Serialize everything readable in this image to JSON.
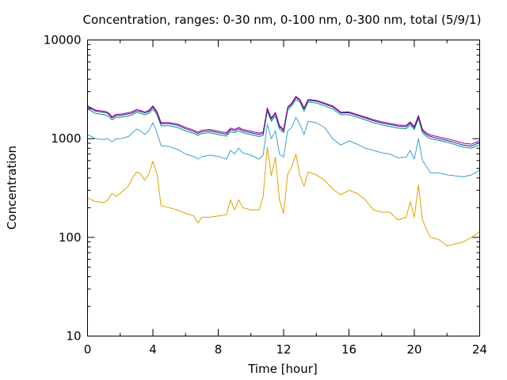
{
  "chart_data": {
    "type": "line",
    "title": "Concentration, ranges: 0-30 nm, 0-100 nm, 0-300 nm, total (5/9/1)",
    "xlabel": "Time [hour]",
    "ylabel": "Concentration",
    "xlim": [
      0,
      24
    ],
    "ylim": [
      10,
      10000
    ],
    "yscale": "log",
    "x_ticks": [
      "0",
      "4",
      "8",
      "12",
      "16",
      "20",
      "24"
    ],
    "y_ticks": [
      "10",
      "100",
      "1000",
      "10000"
    ],
    "grid": false,
    "legend": "none",
    "series": [
      {
        "color": "#e0a000",
        "x": [
          0,
          0.5,
          1,
          1.25,
          1.5,
          1.75,
          2,
          2.5,
          2.75,
          3,
          3.25,
          3.5,
          3.75,
          4,
          4.25,
          4.5,
          5,
          5.5,
          6,
          6.5,
          6.75,
          7,
          7.5,
          8,
          8.5,
          8.75,
          9,
          9.25,
          9.5,
          10,
          10.5,
          10.75,
          11,
          11.25,
          11.5,
          11.75,
          12,
          12.25,
          12.5,
          12.75,
          13,
          13.25,
          13.5,
          14,
          14.5,
          15,
          15.5,
          16,
          16.5,
          17,
          17.5,
          18,
          18.5,
          19,
          19.5,
          19.75,
          20,
          20.25,
          20.5,
          20.75,
          21,
          21.5,
          22,
          22.5,
          23,
          23.5,
          24
        ],
        "y": [
          250,
          230,
          225,
          240,
          280,
          260,
          280,
          330,
          400,
          460,
          440,
          380,
          440,
          590,
          440,
          210,
          200,
          190,
          175,
          165,
          140,
          160,
          160,
          165,
          170,
          240,
          190,
          240,
          200,
          190,
          190,
          260,
          820,
          420,
          650,
          240,
          175,
          440,
          520,
          700,
          420,
          330,
          460,
          430,
          380,
          310,
          270,
          300,
          280,
          240,
          190,
          180,
          180,
          150,
          160,
          230,
          160,
          340,
          150,
          120,
          100,
          95,
          82,
          86,
          90,
          100,
          115
        ]
      },
      {
        "color": "#3aa0d0",
        "x": [
          0,
          0.5,
          1,
          1.25,
          1.5,
          1.75,
          2,
          2.5,
          2.75,
          3,
          3.25,
          3.5,
          3.75,
          4,
          4.25,
          4.5,
          5,
          5.5,
          6,
          6.5,
          6.75,
          7,
          7.5,
          8,
          8.5,
          8.75,
          9,
          9.25,
          9.5,
          10,
          10.5,
          10.75,
          11,
          11.25,
          11.5,
          11.75,
          12,
          12.25,
          12.5,
          12.75,
          13,
          13.25,
          13.5,
          14,
          14.5,
          15,
          15.5,
          16,
          16.5,
          17,
          17.5,
          18,
          18.5,
          19,
          19.5,
          19.75,
          20,
          20.25,
          20.5,
          20.75,
          21,
          21.5,
          22,
          22.5,
          23,
          23.5,
          24
        ],
        "y": [
          1100,
          1000,
          980,
          1000,
          930,
          1000,
          1000,
          1050,
          1150,
          1250,
          1200,
          1100,
          1200,
          1450,
          1150,
          850,
          830,
          780,
          700,
          660,
          620,
          660,
          680,
          660,
          620,
          760,
          700,
          800,
          720,
          680,
          620,
          680,
          1400,
          1000,
          1200,
          700,
          650,
          1200,
          1300,
          1650,
          1400,
          1100,
          1500,
          1450,
          1300,
          1000,
          860,
          950,
          880,
          800,
          760,
          720,
          700,
          640,
          650,
          760,
          620,
          1000,
          600,
          520,
          450,
          450,
          430,
          420,
          410,
          430,
          480
        ]
      },
      {
        "color": "#00946b",
        "x": [
          0,
          0.5,
          1,
          1.25,
          1.5,
          1.75,
          2,
          2.5,
          2.75,
          3,
          3.25,
          3.5,
          3.75,
          4,
          4.25,
          4.5,
          5,
          5.5,
          6,
          6.5,
          6.75,
          7,
          7.5,
          8,
          8.5,
          8.75,
          9,
          9.25,
          9.5,
          10,
          10.5,
          10.75,
          11,
          11.25,
          11.5,
          11.75,
          12,
          12.25,
          12.5,
          12.75,
          13,
          13.25,
          13.5,
          14,
          14.5,
          15,
          15.5,
          16,
          16.5,
          17,
          17.5,
          18,
          18.5,
          19,
          19.5,
          19.75,
          20,
          20.25,
          20.5,
          20.75,
          21,
          21.5,
          22,
          22.5,
          23,
          23.5,
          24
        ],
        "y": [
          2000,
          1800,
          1750,
          1700,
          1550,
          1650,
          1650,
          1700,
          1750,
          1850,
          1800,
          1750,
          1800,
          2000,
          1750,
          1350,
          1350,
          1300,
          1200,
          1130,
          1080,
          1130,
          1150,
          1100,
          1060,
          1180,
          1150,
          1200,
          1150,
          1100,
          1050,
          1080,
          1900,
          1500,
          1700,
          1250,
          1150,
          1950,
          2150,
          2500,
          2350,
          1900,
          2350,
          2300,
          2150,
          2000,
          1750,
          1750,
          1650,
          1550,
          1450,
          1380,
          1330,
          1280,
          1260,
          1380,
          1240,
          1600,
          1150,
          1050,
          1000,
          960,
          920,
          870,
          820,
          800,
          870
        ]
      },
      {
        "color": "#1a1a9a",
        "x": [
          0,
          0.5,
          1,
          1.25,
          1.5,
          1.75,
          2,
          2.5,
          2.75,
          3,
          3.25,
          3.5,
          3.75,
          4,
          4.25,
          4.5,
          5,
          5.5,
          6,
          6.5,
          6.75,
          7,
          7.5,
          8,
          8.5,
          8.75,
          9,
          9.25,
          9.5,
          10,
          10.5,
          10.75,
          11,
          11.25,
          11.5,
          11.75,
          12,
          12.25,
          12.5,
          12.75,
          13,
          13.25,
          13.5,
          14,
          14.5,
          15,
          15.5,
          16,
          16.5,
          17,
          17.5,
          18,
          18.5,
          19,
          19.5,
          19.75,
          20,
          20.25,
          20.5,
          20.75,
          21,
          21.5,
          22,
          22.5,
          23,
          23.5,
          24
        ],
        "y": [
          2100,
          1900,
          1850,
          1800,
          1620,
          1720,
          1720,
          1780,
          1820,
          1920,
          1880,
          1820,
          1880,
          2100,
          1830,
          1420,
          1420,
          1370,
          1260,
          1180,
          1130,
          1180,
          1200,
          1150,
          1110,
          1240,
          1200,
          1260,
          1200,
          1150,
          1100,
          1130,
          2000,
          1580,
          1800,
          1320,
          1200,
          2050,
          2250,
          2620,
          2450,
          2000,
          2450,
          2400,
          2250,
          2100,
          1820,
          1830,
          1720,
          1620,
          1520,
          1440,
          1390,
          1340,
          1320,
          1440,
          1290,
          1680,
          1200,
          1100,
          1050,
          1000,
          960,
          910,
          860,
          840,
          920
        ]
      },
      {
        "color": "#a000a0",
        "x": [
          0,
          0.5,
          1,
          1.25,
          1.5,
          1.75,
          2,
          2.5,
          2.75,
          3,
          3.25,
          3.5,
          3.75,
          4,
          4.25,
          4.5,
          5,
          5.5,
          6,
          6.5,
          6.75,
          7,
          7.5,
          8,
          8.5,
          8.75,
          9,
          9.25,
          9.5,
          10,
          10.5,
          10.75,
          11,
          11.25,
          11.5,
          11.75,
          12,
          12.25,
          12.5,
          12.75,
          13,
          13.25,
          13.5,
          14,
          14.5,
          15,
          15.5,
          16,
          16.5,
          17,
          17.5,
          18,
          18.5,
          19,
          19.5,
          19.75,
          20,
          20.25,
          20.5,
          20.75,
          21,
          21.5,
          22,
          22.5,
          23,
          23.5,
          24
        ],
        "y": [
          2150,
          1950,
          1900,
          1850,
          1670,
          1770,
          1770,
          1830,
          1880,
          1980,
          1930,
          1870,
          1930,
          2150,
          1880,
          1460,
          1460,
          1410,
          1300,
          1220,
          1170,
          1220,
          1240,
          1190,
          1150,
          1280,
          1240,
          1300,
          1240,
          1190,
          1140,
          1170,
          2050,
          1620,
          1850,
          1360,
          1240,
          2100,
          2300,
          2680,
          2500,
          2050,
          2500,
          2450,
          2300,
          2150,
          1860,
          1870,
          1760,
          1660,
          1560,
          1480,
          1430,
          1380,
          1360,
          1480,
          1330,
          1720,
          1240,
          1140,
          1090,
          1040,
          1000,
          950,
          900,
          880,
          960
        ]
      }
    ]
  }
}
